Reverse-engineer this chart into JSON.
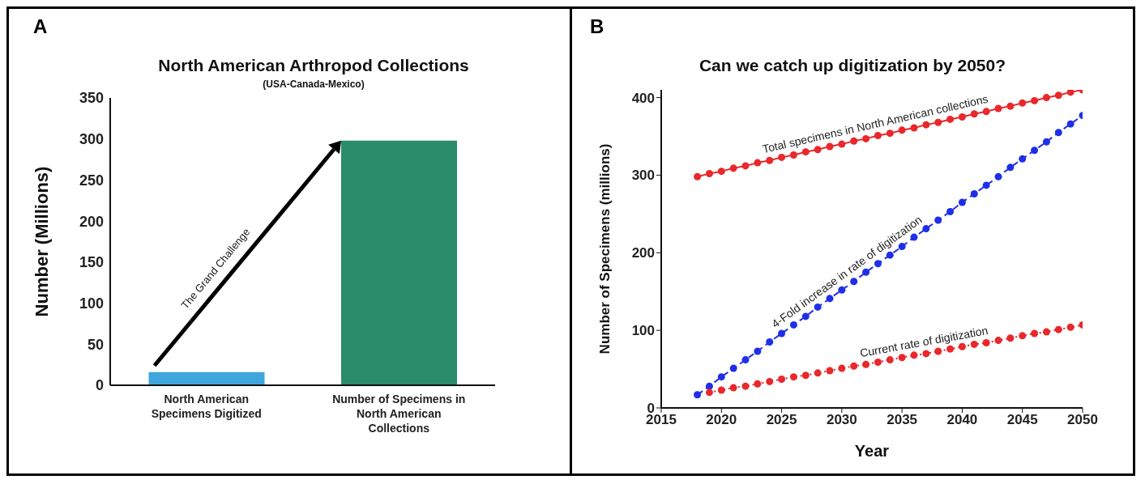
{
  "chart_data": [
    {
      "type": "bar",
      "title": "North American Arthropod Collections",
      "subtitle": "(USA-Canada-Mexico)",
      "ylabel": "Number (Millions)",
      "categories": [
        "North American Specimens Digitized",
        "Number of Specimens in North American Collections"
      ],
      "values": [
        16,
        298
      ],
      "colors": [
        "#3ea6dc",
        "#2a8c6a"
      ],
      "ylim": [
        0,
        350
      ],
      "yticks": [
        0,
        50,
        100,
        150,
        200,
        250,
        300,
        350
      ],
      "grid": false,
      "legend": false,
      "annotations": [
        "A",
        "The Grand Challenge"
      ]
    },
    {
      "type": "line",
      "title": "Can we catch up digitization by 2050?",
      "xlabel": "Year",
      "ylabel": "Number of Specimens (millions)",
      "x": [
        2018,
        2019,
        2020,
        2021,
        2022,
        2023,
        2024,
        2025,
        2026,
        2027,
        2028,
        2029,
        2030,
        2031,
        2032,
        2033,
        2034,
        2035,
        2036,
        2037,
        2038,
        2039,
        2040,
        2041,
        2042,
        2043,
        2044,
        2045,
        2046,
        2047,
        2048,
        2049,
        2050
      ],
      "series": [
        {
          "name": "Total specimens in North American collections",
          "color": "#e8282b",
          "line_style": "solid",
          "values": [
            298,
            302,
            305,
            309,
            312,
            316,
            319,
            323,
            326,
            330,
            333,
            337,
            340,
            344,
            347,
            351,
            354,
            358,
            361,
            365,
            368,
            372,
            375,
            379,
            382,
            386,
            389,
            393,
            396,
            400,
            403,
            407,
            410
          ]
        },
        {
          "name": "4-Fold increase in rate of digitization",
          "color": "#1f2fe8",
          "line_style": "dashed",
          "values": [
            17,
            28,
            40,
            51,
            62,
            73,
            85,
            96,
            107,
            118,
            130,
            141,
            152,
            163,
            175,
            186,
            197,
            208,
            220,
            231,
            242,
            253,
            265,
            276,
            287,
            298,
            310,
            321,
            332,
            343,
            355,
            366,
            377
          ]
        },
        {
          "name": "Current rate of digitization",
          "color": "#e8282b",
          "line_style": "dotted",
          "values": [
            null,
            20,
            23,
            26,
            28,
            31,
            34,
            37,
            40,
            42,
            45,
            48,
            51,
            54,
            56,
            59,
            62,
            65,
            68,
            70,
            73,
            76,
            79,
            82,
            84,
            87,
            90,
            93,
            96,
            98,
            101,
            104,
            107
          ]
        }
      ],
      "xlim": [
        2015,
        2050
      ],
      "xticks": [
        2015,
        2020,
        2025,
        2030,
        2035,
        2040,
        2045,
        2050
      ],
      "ylim": [
        0,
        410
      ],
      "yticks": [
        0,
        100,
        200,
        300,
        400
      ],
      "grid": false,
      "legend": false,
      "marker": "circle",
      "annotations": [
        "B"
      ]
    }
  ]
}
